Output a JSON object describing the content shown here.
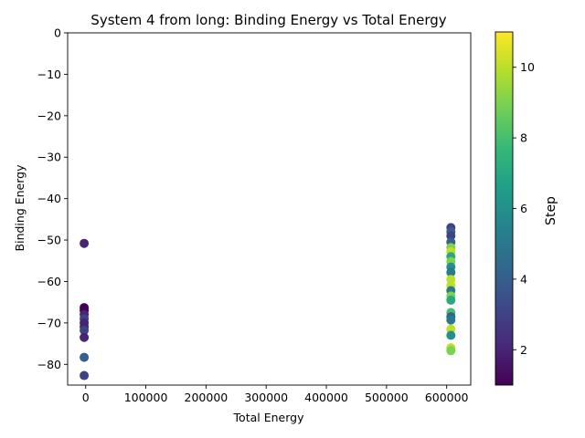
{
  "chart_data": {
    "type": "scatter",
    "title": "System 4 from long: Binding Energy vs Total Energy",
    "xlabel": "Total Energy",
    "ylabel": "Binding Energy",
    "xlim": [
      -30000,
      640000
    ],
    "ylim": [
      -85,
      0
    ],
    "xticks": [
      0,
      100000,
      200000,
      300000,
      400000,
      500000,
      600000
    ],
    "xtick_labels": [
      "0",
      "100000",
      "200000",
      "300000",
      "400000",
      "500000",
      "600000"
    ],
    "yticks": [
      0,
      -10,
      -20,
      -30,
      -40,
      -50,
      -60,
      -70,
      -80
    ],
    "ytick_labels": [
      "0",
      "−10",
      "−20",
      "−30",
      "−40",
      "−50",
      "−60",
      "−70",
      "−80"
    ],
    "grid": false,
    "legend": "none",
    "colorbar": {
      "label": "Step",
      "colormap": "viridis",
      "range": [
        1,
        11
      ],
      "ticks": [
        2,
        4,
        6,
        8,
        10
      ],
      "tick_labels": [
        "2",
        "4",
        "6",
        "8",
        "10"
      ],
      "colormap_stops": [
        "#440154",
        "#482878",
        "#3e4989",
        "#31688e",
        "#26828e",
        "#1f9e89",
        "#35b779",
        "#6ece58",
        "#b5de2b",
        "#fde725"
      ]
    },
    "points": [
      {
        "x": -2500,
        "y": -50.8,
        "step": 2
      },
      {
        "x": -2500,
        "y": -66.3,
        "step": 1
      },
      {
        "x": -2500,
        "y": -67.0,
        "step": 1
      },
      {
        "x": -2500,
        "y": -68.0,
        "step": 2
      },
      {
        "x": -2500,
        "y": -69.0,
        "step": 3
      },
      {
        "x": -2500,
        "y": -70.0,
        "step": 2
      },
      {
        "x": -2500,
        "y": -71.0,
        "step": 2
      },
      {
        "x": -2500,
        "y": -71.8,
        "step": 3
      },
      {
        "x": -2500,
        "y": -73.5,
        "step": 2
      },
      {
        "x": -2500,
        "y": -78.3,
        "step": 4
      },
      {
        "x": -2500,
        "y": -82.7,
        "step": 3
      },
      {
        "x": 607000,
        "y": -47.0,
        "step": 3
      },
      {
        "x": 607000,
        "y": -48.0,
        "step": 4
      },
      {
        "x": 607000,
        "y": -49.0,
        "step": 3
      },
      {
        "x": 607000,
        "y": -50.5,
        "step": 4
      },
      {
        "x": 607000,
        "y": -51.8,
        "step": 9
      },
      {
        "x": 607000,
        "y": -52.8,
        "step": 10
      },
      {
        "x": 607000,
        "y": -54.0,
        "step": 7
      },
      {
        "x": 607000,
        "y": -55.2,
        "step": 9
      },
      {
        "x": 607000,
        "y": -56.5,
        "step": 6
      },
      {
        "x": 607000,
        "y": -57.8,
        "step": 5
      },
      {
        "x": 607000,
        "y": -59.5,
        "step": 10
      },
      {
        "x": 607000,
        "y": -61.0,
        "step": 10
      },
      {
        "x": 607000,
        "y": -62.2,
        "step": 5
      },
      {
        "x": 607000,
        "y": -63.5,
        "step": 9
      },
      {
        "x": 607000,
        "y": -64.5,
        "step": 7
      },
      {
        "x": 607000,
        "y": -67.5,
        "step": 8
      },
      {
        "x": 607000,
        "y": -68.5,
        "step": 4
      },
      {
        "x": 607000,
        "y": -69.3,
        "step": 5
      },
      {
        "x": 607000,
        "y": -71.5,
        "step": 10
      },
      {
        "x": 607000,
        "y": -73.0,
        "step": 6
      },
      {
        "x": 607000,
        "y": -76.0,
        "step": 10
      },
      {
        "x": 607000,
        "y": -76.7,
        "step": 9
      }
    ]
  }
}
